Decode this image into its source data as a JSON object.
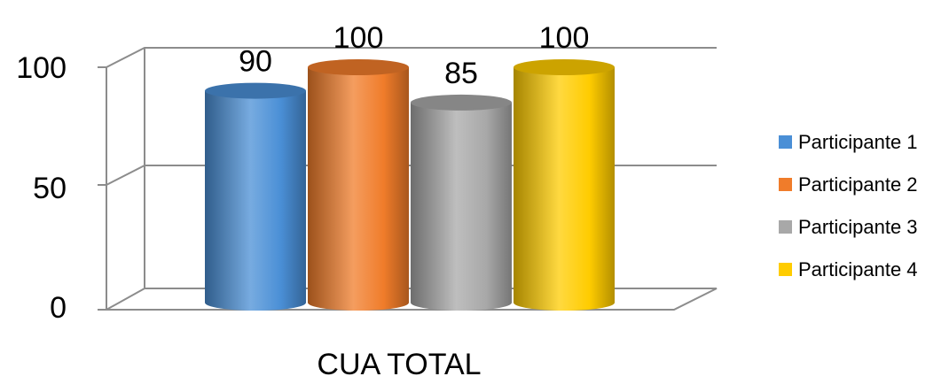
{
  "chart_data": {
    "type": "bar",
    "categories": [
      "CUA TOTAL"
    ],
    "series": [
      {
        "name": "Participante 1",
        "values": [
          90
        ],
        "color": "#4a8fd6"
      },
      {
        "name": "Participante 2",
        "values": [
          100
        ],
        "color": "#f07c2a"
      },
      {
        "name": "Participante 3",
        "values": [
          85
        ],
        "color": "#a8a8a8"
      },
      {
        "name": "Participante 4",
        "values": [
          100
        ],
        "color": "#ffcc00"
      }
    ],
    "yticks": [
      "0",
      "50",
      "100"
    ],
    "ylim": [
      0,
      100
    ],
    "grid": true,
    "legend_position": "right",
    "bar_shape": "cylinder",
    "data_labels": [
      "90",
      "100",
      "85",
      "100"
    ]
  }
}
